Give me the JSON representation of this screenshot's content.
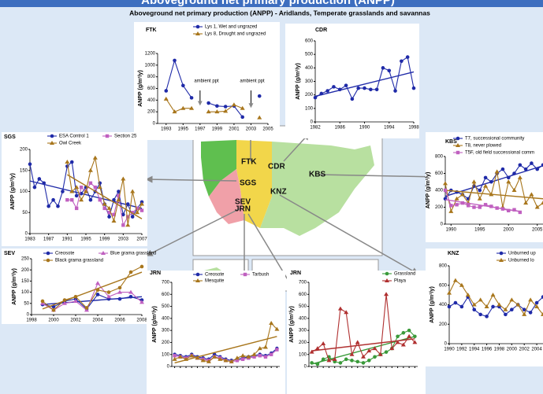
{
  "slide_title": "Aboveground net primary production (ANPP)",
  "header": "Aboveground net primary production (ANPP) - Aridlands, Temperate grasslands and savannas",
  "map": {
    "labels": [
      "FTK",
      "CDR",
      "KBS",
      "SGS",
      "KNZ",
      "SEV",
      "JRN"
    ]
  },
  "chart_data": [
    {
      "type": "line",
      "title": "FTK",
      "ylabel": "ANPP (g/m²/y)",
      "annotations": [
        "ambient ppt",
        "ambient ppt"
      ],
      "x": [
        1993,
        1994,
        1995,
        1996,
        1997,
        1998,
        1999,
        2000,
        2001,
        2002,
        2003,
        2004
      ],
      "xlim": [
        1992,
        2005
      ],
      "xticks": [
        1993,
        1995,
        1997,
        1999,
        2001,
        2003,
        2005
      ],
      "ylim": [
        0,
        1200
      ],
      "yticks": [
        0,
        200,
        400,
        600,
        800,
        1000,
        1200
      ],
      "series": [
        {
          "name": "Lys 1, Wet and ungrazed",
          "color": "#1f2aa8",
          "marker": "circle",
          "values": [
            560,
            1080,
            650,
            440,
            null,
            350,
            300,
            290,
            300,
            110,
            null,
            470
          ]
        },
        {
          "name": "Lys 8, Drought and ungrazed",
          "color": "#a8761c",
          "marker": "triangle",
          "values": [
            420,
            200,
            260,
            260,
            null,
            200,
            200,
            210,
            320,
            260,
            null,
            100
          ]
        }
      ]
    },
    {
      "type": "line",
      "title": "CDR",
      "ylabel": "ANPP (g/m²/y)",
      "x": [
        1982,
        1983,
        1984,
        1985,
        1986,
        1987,
        1988,
        1989,
        1990,
        1991,
        1992,
        1993,
        1994,
        1995,
        1996,
        1997,
        1998
      ],
      "xlim": [
        1982,
        1998
      ],
      "xticks": [
        1982,
        1986,
        1990,
        1994,
        1998
      ],
      "ylim": [
        0,
        600
      ],
      "yticks": [
        0,
        100,
        200,
        300,
        400,
        500,
        600
      ],
      "series": [
        {
          "color": "#1f2aa8",
          "marker": "circle",
          "values": [
            180,
            210,
            230,
            260,
            240,
            270,
            170,
            250,
            250,
            240,
            240,
            400,
            380,
            230,
            450,
            480,
            250
          ],
          "trend": [
            190,
            370
          ]
        }
      ]
    },
    {
      "type": "line",
      "title": "SGS",
      "ylabel": "ANPP (g/m²/y)",
      "x": [
        1983,
        1984,
        1985,
        1986,
        1987,
        1988,
        1989,
        1990,
        1991,
        1992,
        1993,
        1994,
        1995,
        1996,
        1997,
        1998,
        1999,
        2000,
        2001,
        2002,
        2003,
        2004,
        2005,
        2006,
        2007
      ],
      "xlim": [
        1983,
        2007
      ],
      "xticks": [
        1983,
        1987,
        1991,
        1995,
        1999,
        2003,
        2007
      ],
      "ylim": [
        0,
        200
      ],
      "yticks": [
        0,
        50,
        100,
        150,
        200
      ],
      "series": [
        {
          "name": "ESA Control 1",
          "color": "#1f2aa8",
          "marker": "circle",
          "values": [
            165,
            110,
            130,
            120,
            65,
            80,
            65,
            100,
            160,
            170,
            90,
            95,
            110,
            80,
            100,
            120,
            70,
            40,
            80,
            100,
            45,
            70,
            40,
            60,
            75
          ],
          "trend": [
            125,
            60
          ]
        },
        {
          "name": "Section 25",
          "color": "#c060c0",
          "marker": "square",
          "values": [
            null,
            null,
            null,
            null,
            null,
            null,
            null,
            null,
            80,
            80,
            60,
            110,
            100,
            120,
            110,
            80,
            60,
            50,
            45,
            90,
            20,
            40,
            50,
            60,
            55
          ]
        },
        {
          "name": "Owl Creek",
          "color": "#a8761c",
          "marker": "triangle",
          "values": [
            null,
            null,
            null,
            null,
            null,
            null,
            null,
            null,
            170,
            100,
            110,
            80,
            100,
            150,
            180,
            110,
            70,
            60,
            30,
            80,
            130,
            20,
            100,
            50,
            70
          ],
          "trend": [
            140,
            35
          ]
        }
      ]
    },
    {
      "type": "line",
      "title": "KBS",
      "ylabel": "ANPP (g/m²/y)",
      "x": [
        1989,
        1990,
        1991,
        1992,
        1993,
        1994,
        1995,
        1996,
        1997,
        1998,
        1999,
        2000,
        2001,
        2002,
        2003,
        2004,
        2005,
        2006
      ],
      "xlim": [
        1989,
        2006
      ],
      "xticks": [
        1990,
        1995,
        2000,
        2005
      ],
      "ylim": [
        0,
        800
      ],
      "yticks": [
        0,
        200,
        400,
        600,
        800
      ],
      "series": [
        {
          "name": "T7, successional community",
          "color": "#1f2aa8",
          "marker": "circle",
          "values": [
            300,
            400,
            380,
            350,
            300,
            450,
            400,
            550,
            500,
            600,
            650,
            550,
            600,
            700,
            650,
            720,
            650,
            700
          ],
          "trend": [
            330,
            690
          ]
        },
        {
          "name": "T8, never plowed",
          "color": "#a8761c",
          "marker": "triangle",
          "values": [
            480,
            150,
            300,
            350,
            250,
            500,
            300,
            450,
            350,
            620,
            200,
            500,
            400,
            550,
            250,
            350,
            200,
            250
          ],
          "trend": [
            400,
            300
          ]
        },
        {
          "name": "T5F, old field successional comm",
          "color": "#c060c0",
          "marker": "square",
          "values": [
            400,
            220,
            230,
            250,
            220,
            200,
            200,
            230,
            210,
            190,
            180,
            160,
            170,
            140,
            null,
            null,
            null,
            null
          ],
          "trend": [
            290,
            150
          ]
        }
      ]
    },
    {
      "type": "line",
      "title": "SEV",
      "ylabel": "ANPP (g/m²/y)",
      "x": [
        1999,
        2000,
        2001,
        2002,
        2003,
        2004,
        2005,
        2006,
        2007,
        2008
      ],
      "xlim": [
        1998,
        2008
      ],
      "xticks": [
        1998,
        2000,
        2002,
        2004,
        2006,
        2008
      ],
      "ylim": [
        0,
        250
      ],
      "yticks": [
        0,
        50,
        100,
        150,
        200,
        250
      ],
      "series": [
        {
          "name": "Creosote",
          "color": "#1f2aa8",
          "marker": "circle",
          "values": [
            45,
            35,
            60,
            70,
            25,
            90,
            70,
            70,
            80,
            65
          ],
          "trend": [
            45,
            80
          ]
        },
        {
          "name": "Blue grama grassland",
          "color": "#c060c0",
          "marker": "triangle",
          "values": [
            50,
            20,
            50,
            60,
            20,
            140,
            80,
            100,
            100,
            55
          ]
        },
        {
          "name": "Black grama grassland",
          "color": "#a8761c",
          "marker": "circle",
          "values": [
            60,
            20,
            65,
            80,
            30,
            110,
            100,
            120,
            190,
            215
          ],
          "trend": [
            25,
            190
          ]
        }
      ]
    },
    {
      "type": "line",
      "title": "JRN",
      "ylabel": "ANPP (g/m²/y)",
      "categories": [
        null,
        null,
        null,
        null,
        null,
        null,
        null,
        null,
        null,
        null,
        null,
        null,
        null,
        null,
        null,
        null,
        null,
        null,
        null
      ],
      "ylim": [
        0,
        700
      ],
      "yticks": [
        0,
        100,
        200,
        300,
        400,
        500,
        600,
        700
      ],
      "series": [
        {
          "name": "Creosote",
          "color": "#1f2aa8",
          "marker": "circle",
          "values": [
            100,
            90,
            80,
            100,
            80,
            70,
            60,
            100,
            80,
            60,
            50,
            60,
            70,
            80,
            90,
            100,
            90,
            110,
            150
          ]
        },
        {
          "name": "Tarbush",
          "color": "#c060c0",
          "marker": "square",
          "values": [
            90,
            80,
            70,
            90,
            70,
            60,
            50,
            80,
            70,
            50,
            40,
            50,
            60,
            70,
            80,
            90,
            80,
            100,
            140
          ]
        },
        {
          "name": "Mesquite",
          "color": "#a8761c",
          "marker": "triangle",
          "values": [
            60,
            80,
            60,
            90,
            70,
            50,
            40,
            80,
            60,
            50,
            40,
            70,
            90,
            80,
            100,
            150,
            160,
            360,
            310
          ],
          "trend": [
            30,
            250
          ]
        }
      ]
    },
    {
      "type": "line",
      "title": "JRN",
      "ylabel": "ANPP (g/m²/y)",
      "categories": [
        null,
        null,
        null,
        null,
        null,
        null,
        null,
        null,
        null,
        null,
        null,
        null,
        null,
        null,
        null,
        null,
        null,
        null,
        null
      ],
      "ylim": [
        0,
        700
      ],
      "yticks": [
        0,
        100,
        200,
        300,
        400,
        500,
        600,
        700
      ],
      "series": [
        {
          "name": "Grassland",
          "color": "#3a9a3a",
          "marker": "circle",
          "values": [
            30,
            20,
            60,
            80,
            40,
            30,
            60,
            50,
            40,
            30,
            50,
            80,
            100,
            120,
            150,
            250,
            280,
            300,
            250
          ],
          "trend": [
            20,
            250
          ]
        },
        {
          "name": "Playa",
          "color": "#b03030",
          "marker": "triangle",
          "values": [
            120,
            150,
            190,
            50,
            60,
            480,
            450,
            100,
            200,
            80,
            130,
            150,
            100,
            600,
            150,
            200,
            180,
            250,
            200
          ],
          "trend": [
            130,
            230
          ]
        }
      ]
    },
    {
      "type": "line",
      "title": "KNZ",
      "ylabel": "ANPP (g/m²/y)",
      "x": [
        1990,
        1991,
        1992,
        1993,
        1994,
        1995,
        1996,
        1997,
        1998,
        1999,
        2000,
        2001,
        2002,
        2003,
        2004,
        2005
      ],
      "xlim": [
        1990,
        2005
      ],
      "xticks": [
        1990,
        1992,
        1994,
        1996,
        1998,
        2000,
        2002,
        2004
      ],
      "ylim": [
        0,
        800
      ],
      "yticks": [
        0,
        200,
        400,
        600,
        800
      ],
      "series": [
        {
          "name": "Unburned up",
          "color": "#1f2aa8",
          "marker": "circle",
          "values": [
            380,
            420,
            380,
            480,
            350,
            300,
            280,
            380,
            380,
            300,
            350,
            400,
            350,
            320,
            420,
            480
          ]
        },
        {
          "name": "Unburned lo",
          "color": "#a8761c",
          "marker": "triangle",
          "values": [
            520,
            650,
            600,
            500,
            400,
            450,
            380,
            500,
            400,
            350,
            450,
            400,
            300,
            450,
            380,
            300
          ]
        }
      ]
    }
  ]
}
